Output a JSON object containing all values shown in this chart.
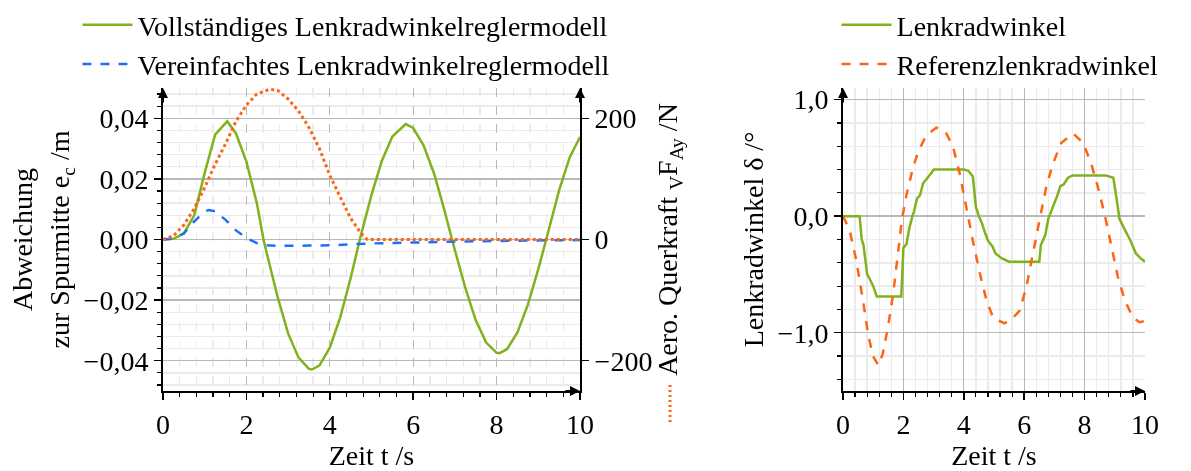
{
  "chart_data": [
    {
      "type": "line",
      "xlabel": "Zeit t /s",
      "ylabel": "Abweichung\nzur Spurmitte e$_{c}$ /m",
      "y2label": "Aero. Querkraft $_{V}$F$_{Ay}$ /N",
      "xlim": [
        0,
        10
      ],
      "xticks": [
        0,
        {
          "value": 0.4,
          "label": null
        },
        {
          "value": 0.8,
          "label": null
        },
        {
          "value": 1.2,
          "label": null
        },
        {
          "value": 1.6,
          "label": null
        },
        2,
        {
          "value": 2.4,
          "label": null
        },
        {
          "value": 2.8,
          "label": null
        },
        {
          "value": 3.2,
          "label": null
        },
        {
          "value": 3.6,
          "label": null
        },
        4,
        {
          "value": 4.4,
          "label": null
        },
        {
          "value": 4.8,
          "label": null
        },
        {
          "value": 5.2,
          "label": null
        },
        {
          "value": 5.6,
          "label": null
        },
        6,
        {
          "value": 6.4,
          "label": null
        },
        {
          "value": 6.8,
          "label": null
        },
        {
          "value": 7.2,
          "label": null
        },
        {
          "value": 7.6,
          "label": null
        },
        8,
        {
          "value": 8.4,
          "label": null
        },
        {
          "value": 8.8,
          "label": null
        },
        {
          "value": 9.2,
          "label": null
        },
        {
          "value": 9.6,
          "label": null
        },
        10
      ],
      "ylim": [
        -0.05,
        0.05
      ],
      "yticks": [
        {
          "value": -0.048,
          "label": null
        },
        {
          "value": -0.044,
          "label": null
        },
        {
          "value": -0.04,
          "label": "−0,04"
        },
        {
          "value": -0.036,
          "label": null
        },
        {
          "value": -0.032,
          "label": null
        },
        {
          "value": -0.028,
          "label": null
        },
        {
          "value": -0.024,
          "label": null
        },
        {
          "value": -0.02,
          "label": "−0,02"
        },
        {
          "value": -0.016,
          "label": null
        },
        {
          "value": -0.012,
          "label": null
        },
        {
          "value": -0.008,
          "label": null
        },
        {
          "value": -0.004,
          "label": null
        },
        {
          "value": 0,
          "label": "0,00"
        },
        {
          "value": 0.004,
          "label": null
        },
        {
          "value": 0.008,
          "label": null
        },
        {
          "value": 0.012,
          "label": null
        },
        {
          "value": 0.016,
          "label": null
        },
        {
          "value": 0.02,
          "label": "0,02"
        },
        {
          "value": 0.024,
          "label": null
        },
        {
          "value": 0.028,
          "label": null
        },
        {
          "value": 0.032,
          "label": null
        },
        {
          "value": 0.036,
          "label": null
        },
        {
          "value": 0.04,
          "label": "0,04"
        },
        {
          "value": 0.044,
          "label": null
        },
        {
          "value": 0.048,
          "label": null
        }
      ],
      "y2lim": [
        -250,
        250
      ],
      "y2ticks": [
        {
          "value": -200,
          "label": "−200"
        },
        0,
        200
      ],
      "grid": true,
      "legend": "top",
      "series": [
        {
          "name": "Vollständiges Lenkradwinkelreglermodell",
          "color": "#80b21e",
          "line_style": "solid",
          "x": [
            0,
            0.25,
            0.5,
            0.75,
            1,
            1.25,
            1.54,
            1.75,
            2,
            2.25,
            2.41,
            2.5,
            2.75,
            3,
            3.25,
            3.5,
            3.57,
            3.75,
            4,
            4.25,
            4.5,
            4.72,
            5,
            5.25,
            5.5,
            5.82,
            6,
            6.25,
            6.5,
            6.75,
            6.93,
            7.25,
            7.5,
            7.75,
            8,
            8.07,
            8.25,
            8.5,
            8.75,
            9,
            9.19,
            9.5,
            9.75,
            10
          ],
          "values": [
            0,
            0.0002,
            0.002,
            0.008,
            0.022,
            0.0346,
            0.039,
            0.035,
            0.0257,
            0.012,
            0,
            -0.0052,
            -0.019,
            -0.031,
            -0.039,
            -0.0427,
            -0.0429,
            -0.0416,
            -0.0357,
            -0.0257,
            -0.0127,
            0,
            0.0147,
            0.026,
            0.034,
            0.0381,
            0.0368,
            0.031,
            0.0218,
            0.0096,
            0,
            -0.016,
            -0.0267,
            -0.034,
            -0.0374,
            -0.0375,
            -0.0362,
            -0.0307,
            -0.0215,
            -0.0098,
            0,
            0.0163,
            0.027,
            0.0338
          ]
        },
        {
          "name": "Vereinfachtes Lenkradwinkelreglermodell",
          "color": "#1f6fff",
          "line_style": "dashed",
          "x": [
            0,
            0.25,
            0.5,
            0.75,
            1,
            1.1,
            1.25,
            1.5,
            1.75,
            2,
            2.25,
            2.5,
            2.75,
            3,
            3.5,
            4,
            4.5,
            5,
            6,
            7,
            8,
            9,
            10
          ],
          "values": [
            0,
            0.0003,
            0.002,
            0.006,
            0.0093,
            0.0097,
            0.0093,
            0.0065,
            0.003,
            0.0005,
            -0.0012,
            -0.0019,
            -0.0021,
            -0.0021,
            -0.002,
            -0.0019,
            -0.0016,
            -0.0013,
            -0.001,
            -0.0007,
            -0.0005,
            -0.0003,
            -0.0002
          ]
        },
        {
          "color": "#ff6414",
          "line_style": "dotted",
          "axis": "y2",
          "x": [
            0,
            0.25,
            0.5,
            0.75,
            1,
            1.25,
            1.5,
            1.75,
            2,
            2.25,
            2.56,
            2.75,
            3,
            3.25,
            3.5,
            3.75,
            4,
            4.25,
            4.5,
            4.75,
            4.9,
            6,
            7,
            8,
            9,
            10
          ],
          "values": [
            0,
            6,
            24,
            51,
            86,
            124,
            158,
            195,
            222,
            240,
            248,
            246,
            232,
            212,
            185,
            150,
            106,
            70,
            35,
            10,
            0,
            0,
            0,
            0,
            0,
            0
          ]
        }
      ]
    },
    {
      "type": "line",
      "xlabel": "Zeit t /s",
      "ylabel": "Lenkradwinkel δ /°",
      "xlim": [
        0,
        10
      ],
      "xticks": [
        0,
        {
          "value": 0.4,
          "label": null
        },
        {
          "value": 0.8,
          "label": null
        },
        {
          "value": 1.2,
          "label": null
        },
        {
          "value": 1.6,
          "label": null
        },
        2,
        {
          "value": 2.4,
          "label": null
        },
        {
          "value": 2.8,
          "label": null
        },
        {
          "value": 3.2,
          "label": null
        },
        {
          "value": 3.6,
          "label": null
        },
        4,
        {
          "value": 4.4,
          "label": null
        },
        {
          "value": 4.8,
          "label": null
        },
        {
          "value": 5.2,
          "label": null
        },
        {
          "value": 5.6,
          "label": null
        },
        6,
        {
          "value": 6.4,
          "label": null
        },
        {
          "value": 6.8,
          "label": null
        },
        {
          "value": 7.2,
          "label": null
        },
        {
          "value": 7.6,
          "label": null
        },
        8,
        {
          "value": 8.4,
          "label": null
        },
        {
          "value": 8.8,
          "label": null
        },
        {
          "value": 9.2,
          "label": null
        },
        {
          "value": 9.6,
          "label": null
        },
        10
      ],
      "ylim": [
        -1.5,
        1.1
      ],
      "yticks": [
        {
          "value": -1.4,
          "label": null
        },
        {
          "value": -1.2,
          "label": null
        },
        {
          "value": -1,
          "label": "−1,0"
        },
        {
          "value": -0.8,
          "label": null
        },
        {
          "value": -0.6,
          "label": null
        },
        {
          "value": -0.4,
          "label": null
        },
        {
          "value": -0.2,
          "label": null
        },
        {
          "value": 0,
          "label": "0,0"
        },
        {
          "value": 0.2,
          "label": null
        },
        {
          "value": 0.4,
          "label": null
        },
        {
          "value": 0.6,
          "label": null
        },
        {
          "value": 0.8,
          "label": null
        },
        {
          "value": 1,
          "label": "1,0"
        }
      ],
      "grid": true,
      "legend": "top",
      "series": [
        {
          "name": "Lenkradwinkel",
          "color": "#80b21e",
          "line_style": "solid",
          "x": [
            0,
            0.55,
            0.62,
            0.68,
            0.8,
            0.85,
            1,
            1.12,
            1.93,
            2,
            2.1,
            2.2,
            2.3,
            2.35,
            2.45,
            2.55,
            2.65,
            2.8,
            2.95,
            3,
            4,
            4.15,
            4.3,
            4.4,
            4.5,
            4.6,
            4.7,
            4.8,
            4.95,
            5.05,
            5.25,
            5.5,
            6.5,
            6.55,
            6.7,
            6.8,
            6.95,
            7.1,
            7.2,
            7.3,
            7.45,
            7.6,
            8.7,
            8.95,
            9,
            9.1,
            9.15,
            9.3,
            9.5,
            9.7,
            9.85,
            10
          ],
          "values": [
            0,
            0,
            -0.2,
            -0.25,
            -0.5,
            -0.52,
            -0.6,
            -0.69,
            -0.69,
            -0.27,
            -0.24,
            -0.1,
            0,
            0.04,
            0.15,
            0.18,
            0.28,
            0.33,
            0.38,
            0.4,
            0.4,
            0.39,
            0.34,
            0.08,
            0,
            -0.06,
            -0.14,
            -0.21,
            -0.26,
            -0.32,
            -0.36,
            -0.39,
            -0.39,
            -0.25,
            -0.16,
            -0.02,
            0.08,
            0.18,
            0.26,
            0.27,
            0.33,
            0.35,
            0.35,
            0.33,
            0.25,
            0.08,
            -0.02,
            -0.1,
            -0.2,
            -0.32,
            -0.36,
            -0.39
          ]
        },
        {
          "name": "Referenzlenkradwinkel",
          "color": "#ff6414",
          "line_style": "dashed",
          "x": [
            0,
            0.22,
            0.44,
            0.66,
            0.83,
            0.99,
            1.17,
            1.32,
            1.49,
            1.66,
            1.82,
            1.95,
            2.1,
            2.32,
            2.5,
            2.75,
            3.09,
            3.4,
            3.64,
            3.86,
            4.08,
            4.3,
            4.53,
            4.75,
            4.97,
            5.35,
            5.6,
            5.85,
            6.07,
            6.29,
            6.51,
            6.73,
            6.95,
            7.23,
            7.62,
            7.95,
            8.22,
            8.44,
            8.66,
            8.89,
            9.1,
            9.33,
            9.6,
            9.82,
            10
          ],
          "values": [
            0,
            -0.12,
            -0.38,
            -0.72,
            -1.01,
            -1.2,
            -1.28,
            -1.18,
            -0.95,
            -0.67,
            -0.32,
            -0.03,
            0.18,
            0.42,
            0.56,
            0.69,
            0.76,
            0.72,
            0.6,
            0.37,
            0.08,
            -0.21,
            -0.49,
            -0.72,
            -0.87,
            -0.92,
            -0.88,
            -0.81,
            -0.61,
            -0.32,
            -0.03,
            0.25,
            0.45,
            0.63,
            0.71,
            0.63,
            0.45,
            0.25,
            0.02,
            -0.26,
            -0.52,
            -0.72,
            -0.87,
            -0.91,
            -0.9
          ]
        }
      ]
    }
  ]
}
